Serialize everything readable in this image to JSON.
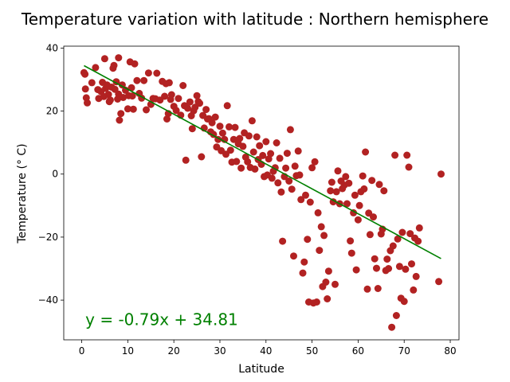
{
  "chart_data": {
    "type": "scatter",
    "title": "Temperature variation with latitude : Northern hemisphere",
    "xlabel": "Latitude",
    "ylabel": "Temperature (° C)",
    "xlim": [
      -3.9,
      81.9
    ],
    "ylim": [
      -52.6,
      40.6
    ],
    "xticks": [
      0,
      10,
      20,
      30,
      40,
      50,
      60,
      70,
      80
    ],
    "yticks": [
      -40,
      -20,
      0,
      20,
      40
    ],
    "grid": false,
    "colors": {
      "points": "#b22222",
      "regression": "#008000"
    },
    "regression": {
      "slope": -0.79,
      "intercept": 34.81,
      "x_range": [
        0.5,
        78
      ],
      "equation_label": "y = -0.79x + 34.81",
      "label_anchor": [
        0.8,
        -47.9
      ]
    },
    "points": [
      [
        0.5,
        32.2
      ],
      [
        0.7,
        31.7
      ],
      [
        0.8,
        27.0
      ],
      [
        1.0,
        24.2
      ],
      [
        1.2,
        22.6
      ],
      [
        2.2,
        29.0
      ],
      [
        3.0,
        33.8
      ],
      [
        3.5,
        26.8
      ],
      [
        3.7,
        24.0
      ],
      [
        4.2,
        26.2
      ],
      [
        4.5,
        29.1
      ],
      [
        4.8,
        24.6
      ],
      [
        5.0,
        36.6
      ],
      [
        5.2,
        27.2
      ],
      [
        5.5,
        28.3
      ],
      [
        5.8,
        25.3
      ],
      [
        6.0,
        23.0
      ],
      [
        6.2,
        23.5
      ],
      [
        6.5,
        27.6
      ],
      [
        6.8,
        33.6
      ],
      [
        7.0,
        34.5
      ],
      [
        7.2,
        26.9
      ],
      [
        7.5,
        29.3
      ],
      [
        7.8,
        23.8
      ],
      [
        8.0,
        36.9
      ],
      [
        8.0,
        25.4
      ],
      [
        8.2,
        17.1
      ],
      [
        8.5,
        19.2
      ],
      [
        8.8,
        28.3
      ],
      [
        9.0,
        24.3
      ],
      [
        9.5,
        26.6
      ],
      [
        10.0,
        20.7
      ],
      [
        10.2,
        24.9
      ],
      [
        10.5,
        35.6
      ],
      [
        10.8,
        27.4
      ],
      [
        11.0,
        24.8
      ],
      [
        11.2,
        20.6
      ],
      [
        11.5,
        35.0
      ],
      [
        12.0,
        29.7
      ],
      [
        12.5,
        25.6
      ],
      [
        13.0,
        24.1
      ],
      [
        13.5,
        29.7
      ],
      [
        14.0,
        20.4
      ],
      [
        14.5,
        32.1
      ],
      [
        15.0,
        22.1
      ],
      [
        15.5,
        24.0
      ],
      [
        16.0,
        23.9
      ],
      [
        16.3,
        32.0
      ],
      [
        17.0,
        23.5
      ],
      [
        17.5,
        29.4
      ],
      [
        18.0,
        24.7
      ],
      [
        18.3,
        28.7
      ],
      [
        18.5,
        17.5
      ],
      [
        18.8,
        19.2
      ],
      [
        19.0,
        29.0
      ],
      [
        19.3,
        23.7
      ],
      [
        19.5,
        25.2
      ],
      [
        20.0,
        21.5
      ],
      [
        20.5,
        20.2
      ],
      [
        21.0,
        24.0
      ],
      [
        21.5,
        18.7
      ],
      [
        22.0,
        28.1
      ],
      [
        22.3,
        21.7
      ],
      [
        22.6,
        4.4
      ],
      [
        23.0,
        20.9
      ],
      [
        23.5,
        22.9
      ],
      [
        23.8,
        18.5
      ],
      [
        24.0,
        14.4
      ],
      [
        24.3,
        20.1
      ],
      [
        24.6,
        21.2
      ],
      [
        25.0,
        24.9
      ],
      [
        25.3,
        23.0
      ],
      [
        25.6,
        22.5
      ],
      [
        26.0,
        5.5
      ],
      [
        26.3,
        18.6
      ],
      [
        26.6,
        14.6
      ],
      [
        27.0,
        20.5
      ],
      [
        27.3,
        17.5
      ],
      [
        27.6,
        17.6
      ],
      [
        28.0,
        13.4
      ],
      [
        28.3,
        16.3
      ],
      [
        28.6,
        12.6
      ],
      [
        29.0,
        18.1
      ],
      [
        29.3,
        8.6
      ],
      [
        29.6,
        11.0
      ],
      [
        30.0,
        15.2
      ],
      [
        30.3,
        7.4
      ],
      [
        30.6,
        13.0
      ],
      [
        31.0,
        11.0
      ],
      [
        31.3,
        6.3
      ],
      [
        31.6,
        21.7
      ],
      [
        32.0,
        15.0
      ],
      [
        32.3,
        7.6
      ],
      [
        32.6,
        3.8
      ],
      [
        33.0,
        11.0
      ],
      [
        33.3,
        14.8
      ],
      [
        33.6,
        4.0
      ],
      [
        34.0,
        9.6
      ],
      [
        34.3,
        11.3
      ],
      [
        34.6,
        1.9
      ],
      [
        35.0,
        8.8
      ],
      [
        35.3,
        13.1
      ],
      [
        35.6,
        5.4
      ],
      [
        36.0,
        3.9
      ],
      [
        36.3,
        12.1
      ],
      [
        36.6,
        2.1
      ],
      [
        37.0,
        16.9
      ],
      [
        37.3,
        7.0
      ],
      [
        37.6,
        1.6
      ],
      [
        38.0,
        11.8
      ],
      [
        38.3,
        4.6
      ],
      [
        38.6,
        9.0
      ],
      [
        39.0,
        3.1
      ],
      [
        39.3,
        5.9
      ],
      [
        39.6,
        -0.8
      ],
      [
        40.0,
        10.3
      ],
      [
        40.3,
        -0.3
      ],
      [
        40.6,
        4.8
      ],
      [
        41.0,
        6.5
      ],
      [
        41.3,
        -1.3
      ],
      [
        41.6,
        0.9
      ],
      [
        42.0,
        2.0
      ],
      [
        42.3,
        9.9
      ],
      [
        42.6,
        -2.8
      ],
      [
        43.0,
        5.0
      ],
      [
        43.3,
        -5.7
      ],
      [
        43.6,
        -21.3
      ],
      [
        44.0,
        -0.8
      ],
      [
        44.3,
        1.9
      ],
      [
        44.6,
        6.6
      ],
      [
        45.0,
        -2.2
      ],
      [
        45.3,
        14.1
      ],
      [
        45.6,
        -4.8
      ],
      [
        46.0,
        -26.0
      ],
      [
        46.3,
        2.5
      ],
      [
        46.6,
        -0.5
      ],
      [
        47.0,
        7.3
      ],
      [
        47.3,
        -0.3
      ],
      [
        47.6,
        -8.1
      ],
      [
        48.0,
        -31.4
      ],
      [
        48.3,
        -27.9
      ],
      [
        48.6,
        -6.7
      ],
      [
        49.0,
        -20.7
      ],
      [
        49.3,
        -40.6
      ],
      [
        49.6,
        -8.9
      ],
      [
        50.0,
        2.0
      ],
      [
        50.3,
        -40.9
      ],
      [
        50.6,
        3.9
      ],
      [
        51.0,
        -40.6
      ],
      [
        51.3,
        -12.3
      ],
      [
        51.6,
        -24.2
      ],
      [
        52.0,
        -16.7
      ],
      [
        52.3,
        -35.7
      ],
      [
        52.6,
        -19.5
      ],
      [
        53.0,
        -34.3
      ],
      [
        53.3,
        -39.6
      ],
      [
        53.6,
        -30.8
      ],
      [
        54.0,
        -5.3
      ],
      [
        54.3,
        -2.6
      ],
      [
        54.6,
        -8.8
      ],
      [
        55.0,
        -35.0
      ],
      [
        55.3,
        -5.6
      ],
      [
        55.6,
        1.0
      ],
      [
        56.0,
        -9.4
      ],
      [
        56.3,
        -2.2
      ],
      [
        56.6,
        -4.6
      ],
      [
        57.0,
        -3.5
      ],
      [
        57.3,
        -0.8
      ],
      [
        57.6,
        -9.4
      ],
      [
        58.0,
        -2.9
      ],
      [
        58.3,
        -21.2
      ],
      [
        58.6,
        -25.1
      ],
      [
        59.0,
        -12.3
      ],
      [
        59.3,
        -6.7
      ],
      [
        59.6,
        -30.4
      ],
      [
        60.0,
        -14.5
      ],
      [
        60.3,
        -10.0
      ],
      [
        60.6,
        -5.6
      ],
      [
        61.0,
        -0.6
      ],
      [
        61.3,
        -4.7
      ],
      [
        61.6,
        7.0
      ],
      [
        62.0,
        -36.5
      ],
      [
        62.3,
        -12.4
      ],
      [
        62.6,
        -19.2
      ],
      [
        63.0,
        -2.0
      ],
      [
        63.3,
        -13.6
      ],
      [
        63.6,
        -26.9
      ],
      [
        64.0,
        -29.9
      ],
      [
        64.3,
        -36.3
      ],
      [
        64.6,
        -3.3
      ],
      [
        65.0,
        -19.0
      ],
      [
        65.3,
        -17.5
      ],
      [
        65.6,
        -5.3
      ],
      [
        66.0,
        -30.6
      ],
      [
        66.3,
        -27.0
      ],
      [
        66.6,
        -30.0
      ],
      [
        67.0,
        -24.3
      ],
      [
        67.3,
        -48.6
      ],
      [
        67.6,
        -22.8
      ],
      [
        68.0,
        6.0
      ],
      [
        68.3,
        -44.9
      ],
      [
        68.6,
        -20.6
      ],
      [
        69.0,
        -29.3
      ],
      [
        69.3,
        -39.4
      ],
      [
        69.6,
        -18.5
      ],
      [
        70.0,
        -40.4
      ],
      [
        70.3,
        -30.2
      ],
      [
        70.6,
        6.0
      ],
      [
        71.0,
        2.2
      ],
      [
        71.3,
        -18.9
      ],
      [
        71.6,
        -28.5
      ],
      [
        72.0,
        -36.8
      ],
      [
        72.3,
        -20.3
      ],
      [
        72.6,
        -32.5
      ],
      [
        73.0,
        -21.3
      ],
      [
        73.3,
        -17.1
      ],
      [
        77.5,
        -34.1
      ],
      [
        78.0,
        0.0
      ]
    ]
  }
}
